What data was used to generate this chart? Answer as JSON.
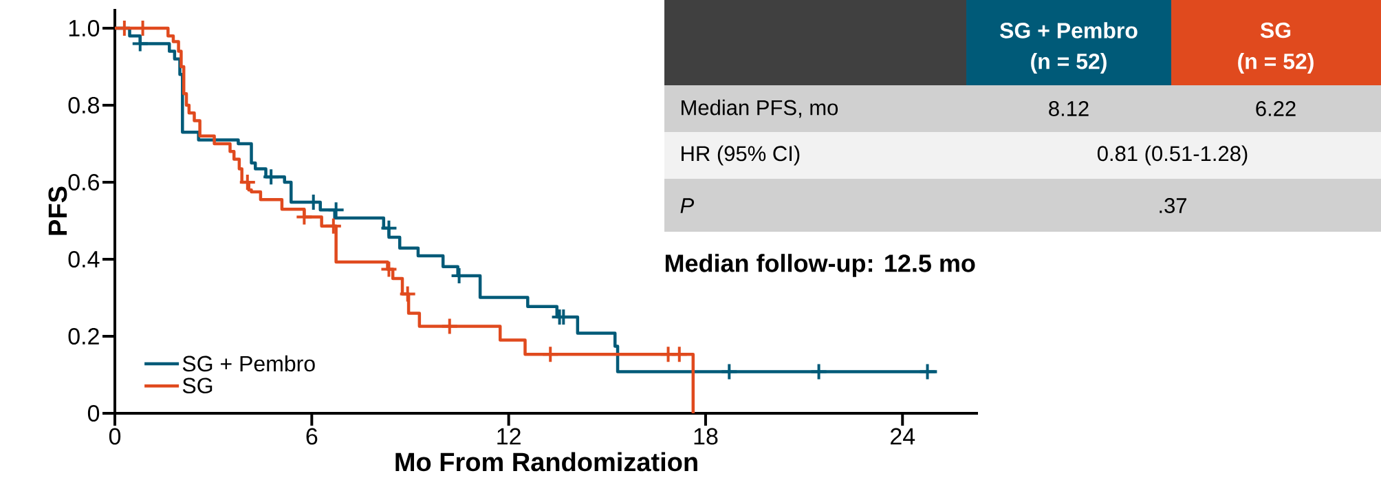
{
  "chart_data": {
    "type": "step",
    "xlabel": "Mo From Randomization",
    "ylabel": "PFS",
    "xlim": [
      0,
      26.3
    ],
    "ylim": [
      0,
      1.05
    ],
    "xticks": [
      0,
      6,
      12,
      18,
      24
    ],
    "yticks": [
      {
        "value": 0,
        "label": "0"
      },
      0.2,
      0.4,
      0.6,
      0.8,
      {
        "value": 1.0,
        "label": "1.0"
      }
    ],
    "legend": "bottom left",
    "series": [
      {
        "name": "SG + Pembro",
        "color": "#005a78",
        "x": [
          0,
          0.45,
          0.77,
          1.66,
          1.82,
          1.98,
          2.06,
          2.55,
          3.76,
          4.16,
          4.28,
          4.6,
          5.17,
          5.37,
          6.26,
          6.7,
          8.19,
          8.35,
          8.68,
          9.24,
          10.0,
          10.45,
          11.13,
          12.58,
          13.47,
          14.1,
          15.24,
          15.32,
          25.05
        ],
        "values": [
          1.0,
          0.98,
          0.96,
          0.94,
          0.92,
          0.88,
          0.73,
          0.71,
          0.7,
          0.65,
          0.635,
          0.614,
          0.6,
          0.548,
          0.528,
          0.507,
          0.481,
          0.457,
          0.429,
          0.409,
          0.381,
          0.357,
          0.301,
          0.277,
          0.25,
          0.208,
          0.174,
          0.108,
          0.108
        ]
      },
      {
        "name": "SG",
        "color": "#e04a1e",
        "x": [
          0,
          1.62,
          1.78,
          1.94,
          2.02,
          2.1,
          2.18,
          2.26,
          2.42,
          2.59,
          3.03,
          3.51,
          3.63,
          3.79,
          3.87,
          4.08,
          4.16,
          4.44,
          5.09,
          5.77,
          6.3,
          6.74,
          8.31,
          8.47,
          8.76,
          8.95,
          9.28,
          11.74,
          12.5,
          17.62
        ],
        "values": [
          1.0,
          0.98,
          0.965,
          0.94,
          0.9,
          0.83,
          0.8,
          0.78,
          0.76,
          0.72,
          0.7,
          0.68,
          0.66,
          0.635,
          0.6,
          0.58,
          0.575,
          0.555,
          0.53,
          0.51,
          0.486,
          0.393,
          0.374,
          0.35,
          0.31,
          0.26,
          0.226,
          0.19,
          0.153,
          0.0
        ]
      },
      {
        "type": "scatter",
        "marker": "cross",
        "color": "#005a78",
        "x": [
          0.77,
          4.76,
          6.05,
          6.74,
          8.35,
          10.49,
          13.55,
          13.67,
          18.72,
          21.45,
          24.76
        ],
        "values": [
          0.96,
          0.614,
          0.548,
          0.528,
          0.481,
          0.357,
          0.25,
          0.25,
          0.108,
          0.108,
          0.108
        ]
      },
      {
        "type": "scatter",
        "marker": "cross",
        "color": "#e04a1e",
        "x": [
          0.29,
          0.85,
          4.04,
          5.77,
          6.66,
          8.35,
          8.92,
          10.2,
          13.27,
          16.86,
          17.2
        ],
        "values": [
          1.0,
          1.0,
          0.6,
          0.51,
          0.486,
          0.374,
          0.31,
          0.226,
          0.153,
          0.153,
          0.153
        ]
      }
    ],
    "annotations": [
      "SG + Pembro",
      "(n = 52)",
      "SG",
      "(n = 52)",
      "Median PFS, mo",
      "8.12",
      "6.22",
      "HR (95% CI)",
      "0.81 (0.51-1.28)",
      "P",
      ".37",
      "Median follow-up: 12.5 mo"
    ]
  }
}
